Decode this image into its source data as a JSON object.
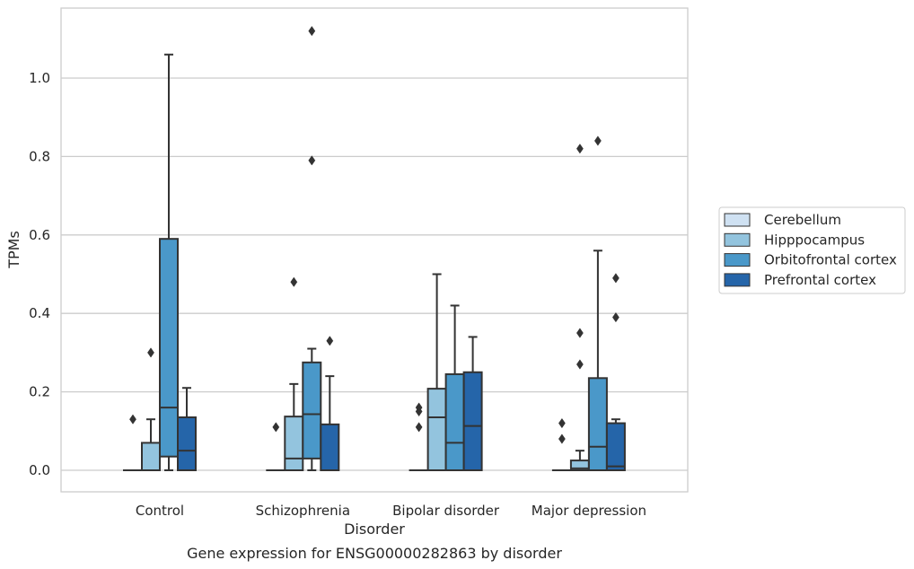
{
  "chart_data": {
    "type": "boxplot",
    "title": "Gene expression for ENSG00000282863 by disorder",
    "xlabel": "Disorder",
    "ylabel": "TPMs",
    "ylim": [
      -0.055,
      1.175
    ],
    "yticks": [
      "0.0",
      "0.2",
      "0.4",
      "0.6",
      "0.8",
      "1.0"
    ],
    "ytick_values": [
      0.0,
      0.2,
      0.4,
      0.6,
      0.8,
      1.0
    ],
    "grid": "horizontal",
    "legend_position": "right",
    "categories": [
      "Control",
      "Schizophrenia",
      "Bipolar disorder",
      "Major depression"
    ],
    "series": [
      {
        "name": "Cerebellum",
        "color": "#cfe1f2",
        "boxes": [
          {
            "min": 0,
            "q1": 0,
            "median": 0,
            "q3": 0,
            "max": 0,
            "outliers": [
              0.13
            ]
          },
          {
            "min": 0,
            "q1": 0,
            "median": 0,
            "q3": 0,
            "max": 0,
            "outliers": [
              0.11
            ]
          },
          {
            "min": 0,
            "q1": 0,
            "median": 0,
            "q3": 0,
            "max": 0,
            "outliers": [
              0.11,
              0.15,
              0.16
            ]
          },
          {
            "min": 0,
            "q1": 0,
            "median": 0,
            "q3": 0,
            "max": 0,
            "outliers": [
              0.08,
              0.12
            ]
          }
        ]
      },
      {
        "name": "Hipppocampus",
        "color": "#93c4de",
        "boxes": [
          {
            "min": 0,
            "q1": 0,
            "median": 0,
            "q3": 0.07,
            "max": 0.13,
            "outliers": [
              0.3
            ]
          },
          {
            "min": 0,
            "q1": 0,
            "median": 0.03,
            "q3": 0.137,
            "max": 0.22,
            "outliers": [
              0.48
            ]
          },
          {
            "min": 0,
            "q1": 0,
            "median": 0.135,
            "q3": 0.208,
            "max": 0.5,
            "outliers": []
          },
          {
            "min": 0,
            "q1": 0,
            "median": 0.005,
            "q3": 0.025,
            "max": 0.05,
            "outliers": [
              0.27,
              0.35,
              0.82
            ]
          }
        ]
      },
      {
        "name": "Orbitofrontal cortex",
        "color": "#4a98c9",
        "boxes": [
          {
            "min": 0,
            "q1": 0.035,
            "median": 0.16,
            "q3": 0.59,
            "max": 1.06,
            "outliers": []
          },
          {
            "min": 0,
            "q1": 0.03,
            "median": 0.143,
            "q3": 0.275,
            "max": 0.31,
            "outliers": [
              0.79,
              1.12
            ]
          },
          {
            "min": 0,
            "q1": 0,
            "median": 0.07,
            "q3": 0.245,
            "max": 0.42,
            "outliers": []
          },
          {
            "min": 0,
            "q1": 0,
            "median": 0.06,
            "q3": 0.235,
            "max": 0.56,
            "outliers": [
              0.84
            ]
          }
        ]
      },
      {
        "name": "Prefrontal cortex",
        "color": "#2565a9",
        "boxes": [
          {
            "min": 0,
            "q1": 0,
            "median": 0.05,
            "q3": 0.135,
            "max": 0.21,
            "outliers": []
          },
          {
            "min": 0,
            "q1": 0,
            "median": 0,
            "q3": 0.117,
            "max": 0.24,
            "outliers": [
              0.33
            ]
          },
          {
            "min": 0,
            "q1": 0,
            "median": 0.113,
            "q3": 0.25,
            "max": 0.34,
            "outliers": []
          },
          {
            "min": 0,
            "q1": 0,
            "median": 0.01,
            "q3": 0.12,
            "max": 0.13,
            "outliers": [
              0.39,
              0.49
            ]
          }
        ]
      }
    ]
  }
}
